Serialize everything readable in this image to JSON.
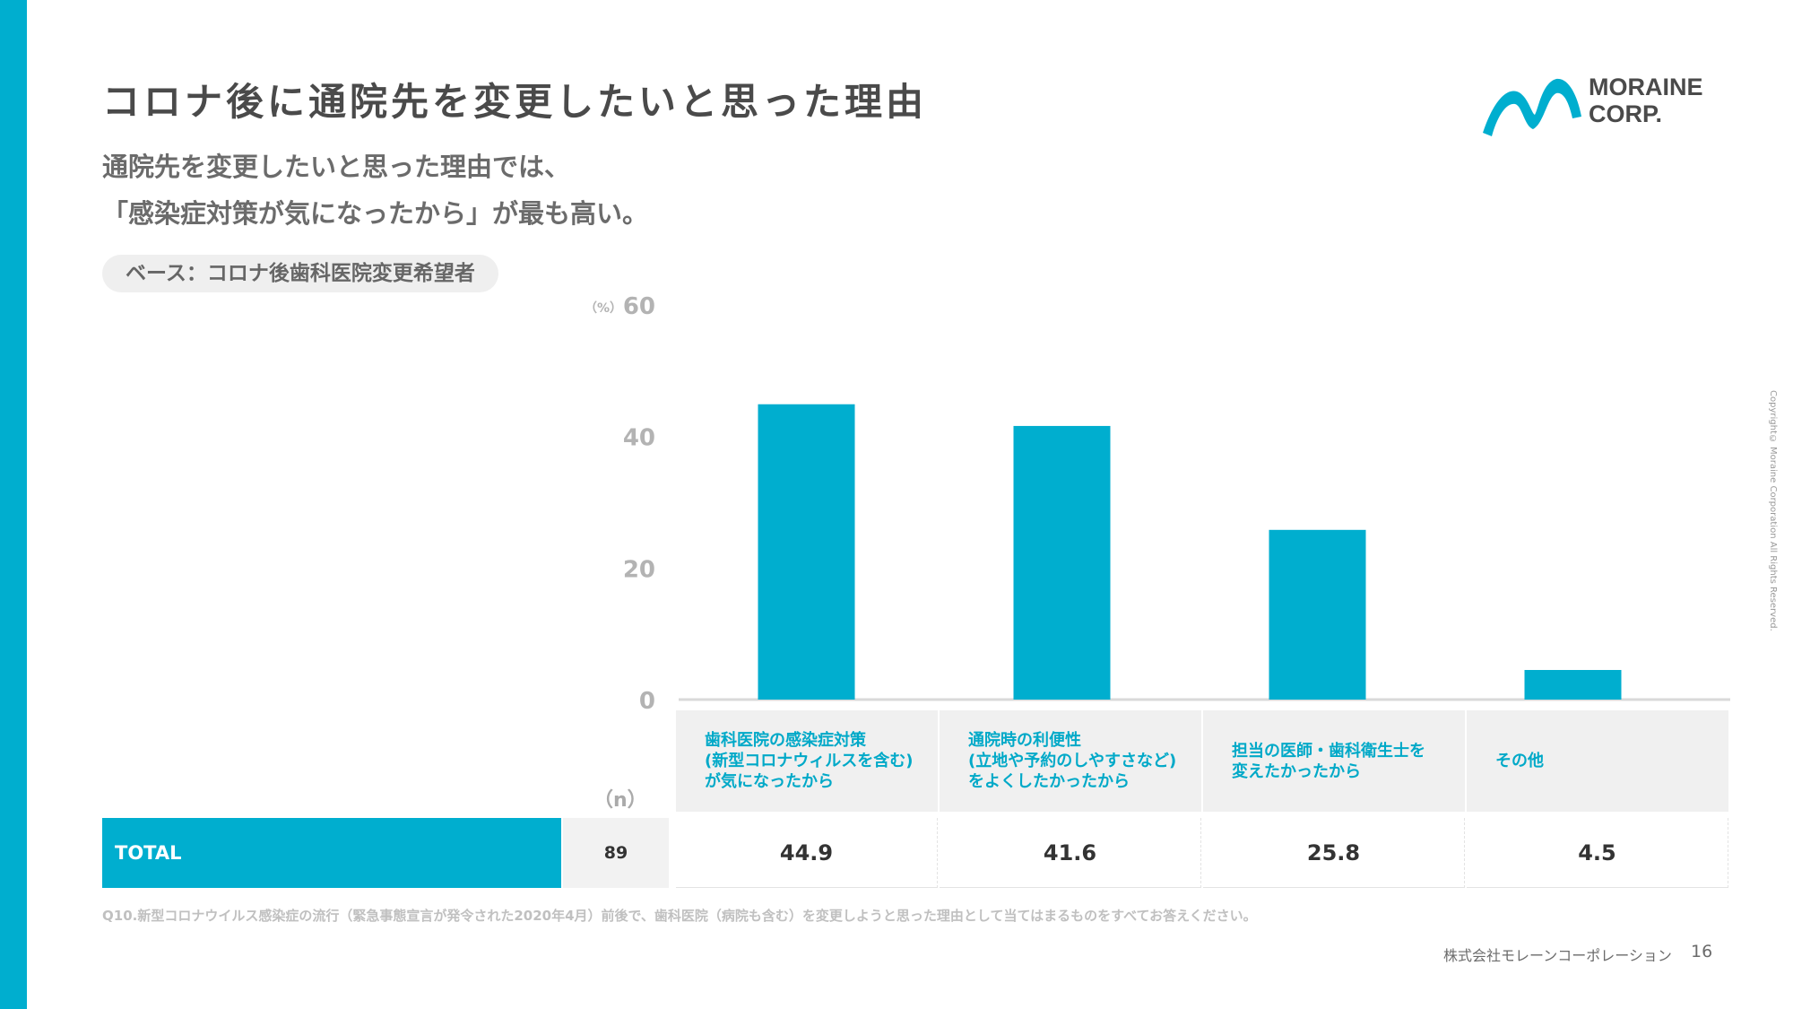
{
  "title": "コロナ後に通院先を変更したいと思った理由",
  "subtitle": [
    "通院先を変更したいと思った理由では、",
    "「感染症対策が気になったから」が最も高い。"
  ],
  "base_label": "ベース：コロナ後歯科医院変更希望者",
  "logo": {
    "line1": "MORAINE",
    "line2": "CORP.",
    "color": "#00aecf"
  },
  "copyright": "Copyright© Moraine Corporation All Rights Reserved.",
  "chart_data": {
    "type": "bar",
    "unit_label": "（%）",
    "categories": [
      "歯科医院の感染症対策\n(新型コロナウィルスを含む)\nが気になったから",
      "通院時の利便性\n(立地や予約のしやすさなど)\nをよくしたかったから",
      "担当の医師・歯科衛生士を\n変えたかったから",
      "その他"
    ],
    "values": [
      44.9,
      41.6,
      25.8,
      4.5
    ],
    "ylim": [
      0,
      60
    ],
    "yticks": [
      0,
      20,
      40,
      60
    ],
    "bar_color": "#00aecf"
  },
  "table": {
    "n_header": "（n）",
    "row_label": "TOTAL",
    "n_value": "89",
    "values": [
      "44.9",
      "41.6",
      "25.8",
      "4.5"
    ]
  },
  "footnote": "Q10.新型コロナウイルス感染症の流行（緊急事態宣言が発令された2020年4月）前後で、歯科医院（病院も含む）を変更しようと思った理由として当てはまるものをすべてお答えください。",
  "company": "株式会社モレーンコーポレーション",
  "page_number": "16"
}
